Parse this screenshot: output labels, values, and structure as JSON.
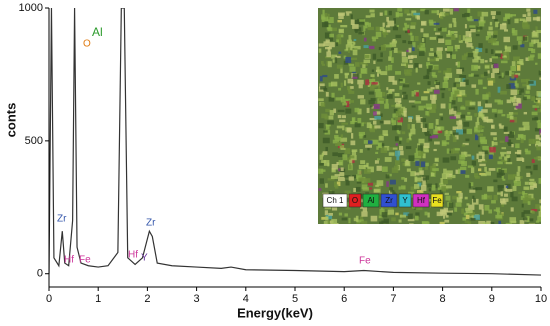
{
  "chart_data": {
    "type": "line",
    "x_label": "Energy(keV)",
    "y_label": "conts",
    "x": [
      0.0,
      0.05,
      0.1,
      0.2,
      0.27,
      0.32,
      0.4,
      0.48,
      0.52,
      0.57,
      0.65,
      0.8,
      1.0,
      1.2,
      1.4,
      1.47,
      1.53,
      1.6,
      1.75,
      1.9,
      2.04,
      2.1,
      2.2,
      2.5,
      3.0,
      3.5,
      3.7,
      4.0,
      5.0,
      6.0,
      6.4,
      7.0,
      8.0,
      9.0,
      10.0
    ],
    "series": [
      {
        "color": "#333333",
        "values": [
          0,
          1000,
          60,
          30,
          160,
          40,
          30,
          200,
          1000,
          100,
          40,
          30,
          25,
          30,
          80,
          1000,
          1000,
          60,
          35,
          60,
          160,
          140,
          40,
          30,
          25,
          20,
          25,
          15,
          12,
          8,
          12,
          5,
          2,
          0,
          -5
        ]
      }
    ],
    "xlim": [
      0,
      10
    ],
    "xticks": [
      0,
      1,
      2,
      3,
      4,
      5,
      6,
      7,
      8,
      9,
      10
    ],
    "ylim": [
      -50,
      1000
    ],
    "yticks": [
      0,
      500,
      1000
    ],
    "annotations": [
      "O",
      "Al",
      "Zr",
      "Hf",
      "Fe",
      "Hf",
      "Y",
      "Zr",
      "Fe"
    ],
    "inset_legend": [
      "Ch 1",
      "O",
      "Al",
      "Zr",
      "Y",
      "Hf",
      "Fe"
    ]
  }
}
